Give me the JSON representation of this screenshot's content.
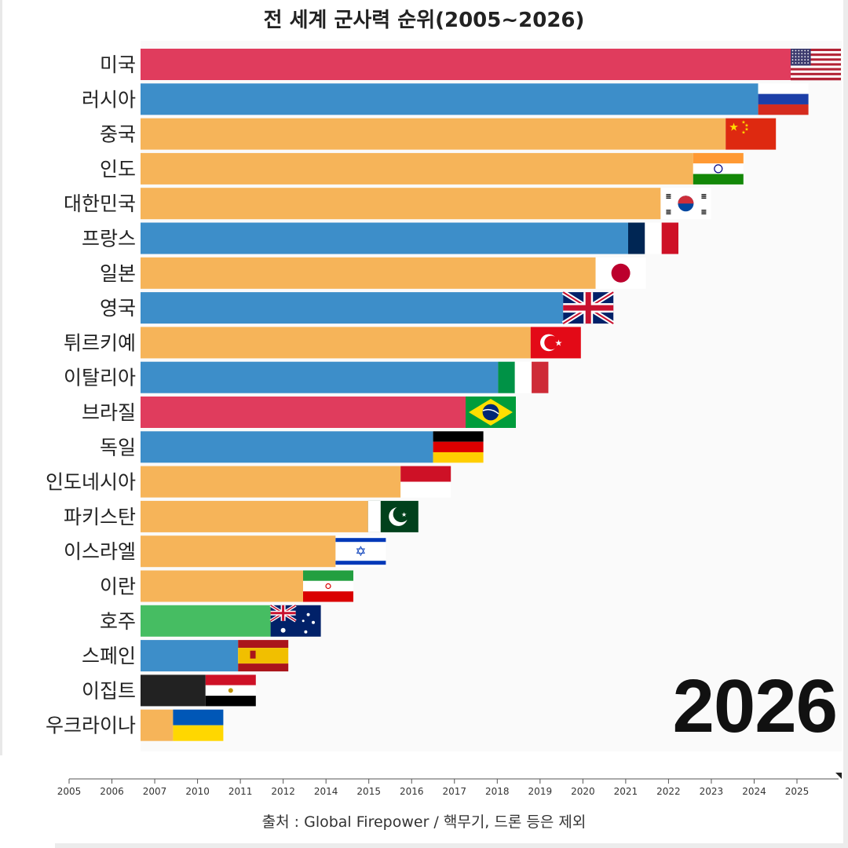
{
  "title": "전 세계 군사력 순위(2005~2026)",
  "year": "2026",
  "source": "출처 : Global Firepower / 핵무기, 드론 등은 제외",
  "chart_data": {
    "type": "bar",
    "orientation": "horizontal",
    "title": "전 세계 군사력 순위(2005~2026)",
    "xlabel": "",
    "ylabel": "",
    "x_ticks": [
      "2005",
      "2006",
      "2007",
      "2010",
      "2011",
      "2012",
      "2014",
      "2015",
      "2016",
      "2017",
      "2018",
      "2019",
      "2020",
      "2021",
      "2022",
      "2023",
      "2024",
      "2025"
    ],
    "categories": [
      "미국",
      "러시아",
      "중국",
      "인도",
      "대한민국",
      "프랑스",
      "일본",
      "영국",
      "튀르키예",
      "이탈리아",
      "브라질",
      "독일",
      "인도네시아",
      "파키스탄",
      "이스라엘",
      "이란",
      "호주",
      "스페인",
      "이집트",
      "우크라이나"
    ],
    "ranks": [
      1,
      2,
      3,
      4,
      5,
      6,
      7,
      8,
      9,
      10,
      11,
      12,
      13,
      14,
      15,
      16,
      17,
      18,
      19,
      20
    ],
    "values": [
      20,
      19,
      18,
      17,
      16,
      15,
      14,
      13,
      12,
      11,
      10,
      9,
      8,
      7,
      6,
      5,
      4,
      3,
      2,
      1
    ],
    "value_unit": "inverse rank (bar length reflects ranking: 1st = longest)",
    "colors": [
      "#e03c5d",
      "#3d8ec9",
      "#f6b459",
      "#f6b459",
      "#f6b459",
      "#3d8ec9",
      "#f6b459",
      "#3d8ec9",
      "#f6b459",
      "#3d8ec9",
      "#e03c5d",
      "#3d8ec9",
      "#f6b459",
      "#f6b459",
      "#f6b459",
      "#f6b459",
      "#46bd62",
      "#3d8ec9",
      "#222222",
      "#f6b459"
    ],
    "flags": [
      "us",
      "ru",
      "cn",
      "in",
      "kr",
      "fr",
      "jp",
      "gb",
      "tr",
      "it",
      "br",
      "de",
      "id",
      "pk",
      "il",
      "ir",
      "au",
      "es",
      "eg",
      "ua"
    ],
    "legend": "none",
    "grid": false
  }
}
